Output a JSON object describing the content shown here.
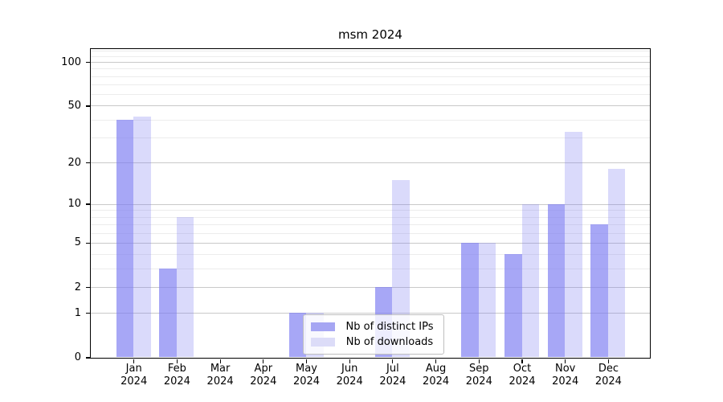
{
  "chart_data": {
    "type": "bar",
    "title": "msm 2024",
    "categories": [
      "Jan",
      "Feb",
      "Mar",
      "Apr",
      "May",
      "Jun",
      "Jul",
      "Aug",
      "Sep",
      "Oct",
      "Nov",
      "Dec"
    ],
    "category_year": "2024",
    "series": [
      {
        "name": "Nb of distinct IPs",
        "slug": "distinct-ips",
        "color": "#a6a6f3",
        "fill": "rgba(121,121,241,0.66)",
        "values": [
          40,
          3,
          0,
          0,
          1,
          0,
          2,
          0,
          5,
          4,
          10,
          7
        ]
      },
      {
        "name": "Nb of downloads",
        "slug": "downloads",
        "color": "#dcdcf8",
        "fill": "rgba(121,121,241,0.28)",
        "values": [
          42,
          8,
          0,
          0,
          1,
          0,
          15,
          0,
          5,
          10,
          33,
          18
        ]
      }
    ],
    "y_scale": "log10(1+v)",
    "yticks_major": [
      0,
      1,
      2,
      5,
      10,
      20,
      50,
      100
    ],
    "yticks_minor": [
      3,
      4,
      6,
      7,
      8,
      9,
      30,
      40,
      60,
      70,
      80,
      90,
      110,
      120
    ],
    "ylim": [
      0,
      126
    ],
    "xlabel": "",
    "ylabel": "",
    "grid": true,
    "legend_position": "lower-center-inside"
  }
}
